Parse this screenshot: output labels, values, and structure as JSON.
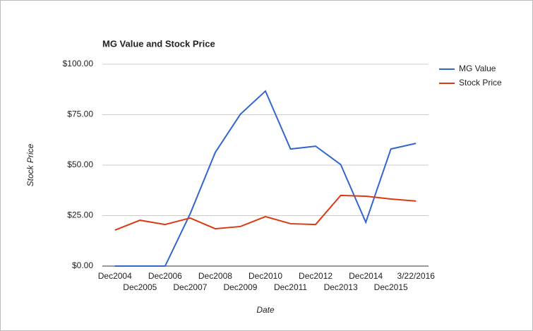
{
  "chart_data": {
    "type": "line",
    "title": "MG Value and Stock Price",
    "x_label": "Date",
    "y_label": "Stock Price",
    "categories": [
      "Dec2004",
      "Dec2005",
      "Dec2006",
      "Dec2007",
      "Dec2008",
      "Dec2009",
      "Dec2010",
      "Dec2011",
      "Dec2012",
      "Dec2013",
      "Dec2014",
      "Dec2015",
      "3/22/2016"
    ],
    "series": [
      {
        "name": "MG Value",
        "color": "#3366cc",
        "values": [
          0,
          0,
          0,
          25.9,
          56.3,
          75.2,
          86.7,
          58,
          59.4,
          50.3,
          21.7,
          58,
          60.8
        ]
      },
      {
        "name": "Stock Price",
        "color": "#dc3912",
        "values": [
          17.8,
          22.7,
          20.6,
          23.8,
          18.5,
          19.6,
          24.5,
          21,
          20.6,
          35,
          34.6,
          33.2,
          32.2
        ]
      }
    ],
    "ylim": [
      0,
      100
    ],
    "yticks": [
      {
        "value": 0,
        "label": "$0.00"
      },
      {
        "value": 25,
        "label": "$25.00"
      },
      {
        "value": 50,
        "label": "$50.00"
      },
      {
        "value": 75,
        "label": "$75.00"
      },
      {
        "value": 100,
        "label": "$100.00"
      }
    ],
    "grid": true,
    "legend": "right"
  }
}
